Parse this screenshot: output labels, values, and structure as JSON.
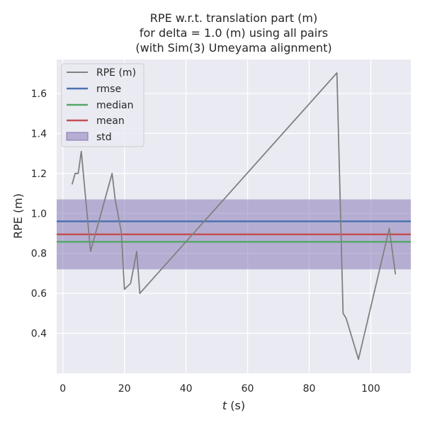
{
  "chart_data": {
    "type": "line",
    "title_lines": [
      "RPE w.r.t. translation part (m)",
      "for delta = 1.0 (m) using all pairs",
      "(with Sim(3) Umeyama alignment)"
    ],
    "xlabel_var": "t",
    "xlabel_unit": " (s)",
    "ylabel": "RPE (m)",
    "xlim": [
      -2,
      113
    ],
    "ylim": [
      0.2,
      1.77
    ],
    "xticks": [
      0,
      20,
      40,
      60,
      80,
      100
    ],
    "yticks": [
      0.4,
      0.6,
      0.8,
      1.0,
      1.2,
      1.4,
      1.6
    ],
    "ytick_labels": [
      "0.4",
      "0.6",
      "0.8",
      "1.0",
      "1.2",
      "1.4",
      "1.6"
    ],
    "grid": true,
    "legend_position": "upper-left",
    "series": [
      {
        "name": "RPE (m)",
        "color": "#808080",
        "x": [
          3,
          4,
          5,
          6,
          9,
          16,
          17,
          19,
          20,
          22,
          24,
          25,
          89,
          91,
          92,
          96,
          106,
          108
        ],
        "y": [
          1.145,
          1.2,
          1.2,
          1.31,
          0.81,
          1.2,
          1.07,
          0.905,
          0.62,
          0.65,
          0.81,
          0.6,
          1.703,
          0.5,
          0.475,
          0.27,
          0.925,
          0.695
        ]
      }
    ],
    "stats": {
      "rmse": {
        "name": "rmse",
        "value": 0.96,
        "color": "#4c72b0"
      },
      "median": {
        "name": "median",
        "value": 0.858,
        "color": "#55a868"
      },
      "mean": {
        "name": "mean",
        "value": 0.895,
        "color": "#c44e52"
      },
      "std": {
        "name": "std",
        "low": 0.72,
        "high": 1.07,
        "color": "#8172b2"
      }
    },
    "legend_entries": [
      "RPE (m)",
      "rmse",
      "median",
      "mean",
      "std"
    ]
  }
}
